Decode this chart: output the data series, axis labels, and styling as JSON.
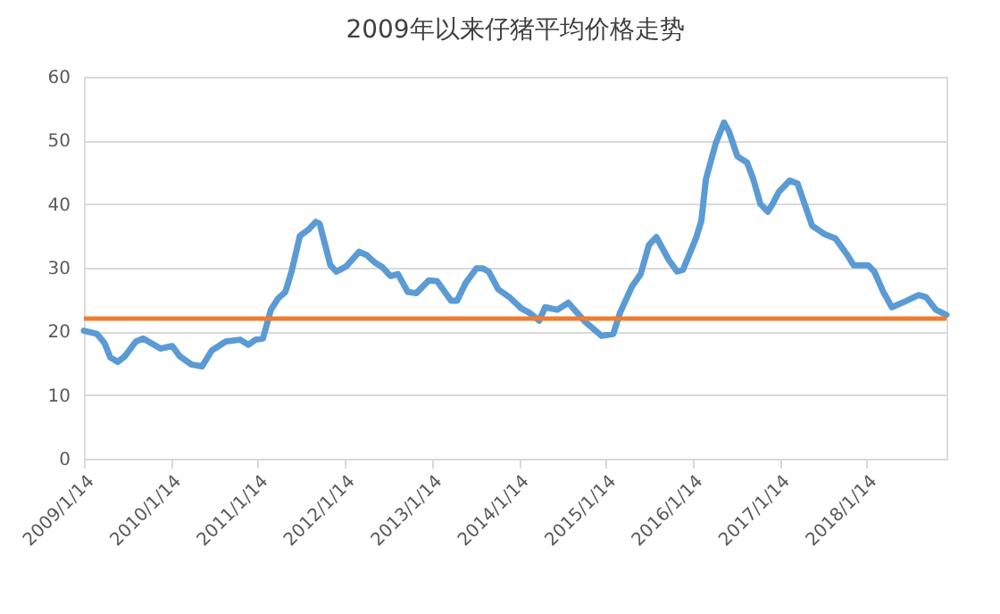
{
  "chart_data": {
    "type": "line",
    "title": "2009年以来仔猪平均价格走势",
    "x": [
      "2009-01-14",
      "2009-03-10",
      "2009-04-10",
      "2009-05-05",
      "2009-06-05",
      "2009-07-05",
      "2009-08-20",
      "2009-09-20",
      "2009-12-01",
      "2010-01-20",
      "2010-02-20",
      "2010-04-10",
      "2010-05-25",
      "2010-07-05",
      "2010-09-01",
      "2010-11-01",
      "2010-12-05",
      "2011-01-05",
      "2011-02-05",
      "2011-03-10",
      "2011-04-10",
      "2011-05-10",
      "2011-06-05",
      "2011-07-10",
      "2011-08-15",
      "2011-09-15",
      "2011-10-01",
      "2011-11-15",
      "2011-12-10",
      "2012-01-20",
      "2012-03-15",
      "2012-04-15",
      "2012-05-20",
      "2012-06-20",
      "2012-07-25",
      "2012-08-25",
      "2012-10-05",
      "2012-11-10",
      "2013-01-01",
      "2013-02-05",
      "2013-04-05",
      "2013-04-30",
      "2013-06-05",
      "2013-07-20",
      "2013-08-15",
      "2013-09-10",
      "2013-10-20",
      "2013-12-05",
      "2014-01-25",
      "2014-03-01",
      "2014-04-10",
      "2014-05-05",
      "2014-06-25",
      "2014-08-10",
      "2014-10-20",
      "2014-12-28",
      "2015-02-15",
      "2015-03-15",
      "2015-05-05",
      "2015-06-10",
      "2015-07-15",
      "2015-08-15",
      "2015-10-05",
      "2015-11-10",
      "2015-12-05",
      "2016-01-28",
      "2016-02-20",
      "2016-03-10",
      "2016-04-20",
      "2016-05-25",
      "2016-06-15",
      "2016-07-20",
      "2016-08-30",
      "2016-09-25",
      "2016-10-25",
      "2016-11-25",
      "2016-12-15",
      "2017-01-10",
      "2017-02-25",
      "2017-03-30",
      "2017-05-05",
      "2017-05-30",
      "2017-07-20",
      "2017-09-05",
      "2017-10-25",
      "2017-11-20",
      "2018-01-20",
      "2018-02-15",
      "2018-03-25",
      "2018-04-30",
      "2018-06-30",
      "2018-08-20",
      "2018-09-20",
      "2018-11-01",
      "2018-12-15"
    ],
    "series": [
      {
        "color": "#5b9bd5",
        "values": [
          20.1,
          19.6,
          18.2,
          15.9,
          15.2,
          16.1,
          18.4,
          18.9,
          17.3,
          17.7,
          16.1,
          14.8,
          14.5,
          17.0,
          18.4,
          18.7,
          17.9,
          18.7,
          18.9,
          23.4,
          25.2,
          26.2,
          29.4,
          35.0,
          36.0,
          37.2,
          36.9,
          30.4,
          29.4,
          30.2,
          32.5,
          32.0,
          30.8,
          30.1,
          28.7,
          29.0,
          26.2,
          26.0,
          28.0,
          27.9,
          24.8,
          24.8,
          27.6,
          29.9,
          29.9,
          29.4,
          26.6,
          25.4,
          23.6,
          22.9,
          21.7,
          23.8,
          23.4,
          24.5,
          21.5,
          19.3,
          19.6,
          22.9,
          27.1,
          29.0,
          33.6,
          34.8,
          31.3,
          29.4,
          29.7,
          34.6,
          37.4,
          43.9,
          49.5,
          52.8,
          51.4,
          47.5,
          46.5,
          43.9,
          40.0,
          38.8,
          40.0,
          41.9,
          43.7,
          43.2,
          39.3,
          36.6,
          35.3,
          34.6,
          32.0,
          30.4,
          30.4,
          29.4,
          26.2,
          23.8,
          24.8,
          25.7,
          25.4,
          23.4,
          22.6
        ]
      }
    ],
    "ref_lines": [
      {
        "axis": "y",
        "value": 22,
        "color": "#ed7d31"
      }
    ],
    "xlim": [
      "2009-01-14",
      "2018-12-15"
    ],
    "xticks": [
      {
        "value": "2009-01-14",
        "label": "2009/1/14"
      },
      {
        "value": "2010-01-14",
        "label": "2010/1/14"
      },
      {
        "value": "2011-01-14",
        "label": "2011/1/14"
      },
      {
        "value": "2012-01-14",
        "label": "2012/1/14"
      },
      {
        "value": "2013-01-14",
        "label": "2013/1/14"
      },
      {
        "value": "2014-01-14",
        "label": "2014/1/14"
      },
      {
        "value": "2015-01-14",
        "label": "2015/1/14"
      },
      {
        "value": "2016-01-14",
        "label": "2016/1/14"
      },
      {
        "value": "2017-01-14",
        "label": "2017/1/14"
      },
      {
        "value": "2018-01-14",
        "label": "2018/1/14"
      }
    ],
    "ylim": [
      0,
      60
    ],
    "yticks": [
      0,
      10,
      20,
      30,
      40,
      50,
      60
    ],
    "grid": "y"
  }
}
